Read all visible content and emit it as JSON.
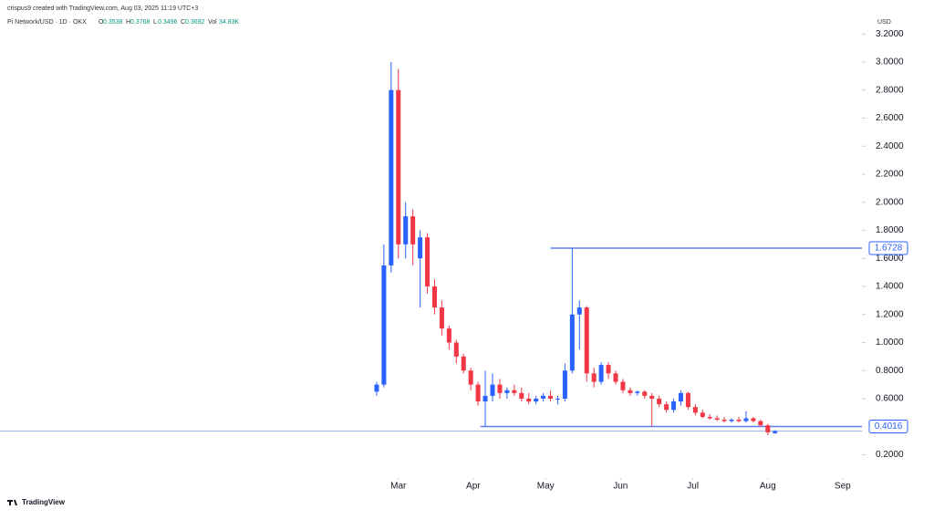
{
  "chart_data": {
    "type": "candlestick",
    "credit": "crispus9 created with TradingView.com, Aug 03, 2025 11:19 UTC+3",
    "title": "Pi Network/USD · 1D · OKX",
    "ohlc_legend": {
      "o": "O",
      "h": "H",
      "l": "L",
      "c": "C",
      "vol": "Vol",
      "vol_value": "34.83K"
    },
    "y_label": "USD",
    "watermark": "TradingView",
    "up_color": "#2962ff",
    "down_color": "#f23645",
    "grid": false,
    "x": [
      19,
      22,
      25,
      28,
      31,
      34,
      37,
      40,
      43,
      46,
      49,
      52,
      55,
      58,
      61,
      64,
      67,
      70,
      73,
      76,
      79,
      82,
      85,
      88,
      91,
      94,
      97,
      100,
      103,
      106,
      109,
      112,
      115,
      118,
      121,
      124,
      127,
      130,
      133,
      136,
      139,
      142,
      145,
      148,
      151,
      154,
      157,
      160,
      163,
      166,
      169,
      172,
      175,
      178,
      181,
      184
    ],
    "open": [
      0.65,
      0.7,
      1.55,
      2.8,
      1.7,
      1.9,
      1.6,
      1.75,
      1.4,
      1.25,
      1.1,
      1.0,
      0.9,
      0.8,
      0.7,
      0.58,
      0.62,
      0.7,
      0.64,
      0.66,
      0.64,
      0.6,
      0.58,
      0.6,
      0.62,
      0.6,
      0.6,
      0.8,
      1.2,
      1.25,
      0.78,
      0.72,
      0.84,
      0.78,
      0.72,
      0.66,
      0.64,
      0.65,
      0.62,
      0.6,
      0.56,
      0.52,
      0.58,
      0.64,
      0.54,
      0.5,
      0.47,
      0.46,
      0.45,
      0.44,
      0.45,
      0.44,
      0.46,
      0.44,
      0.41,
      0.3538
    ],
    "high": [
      0.72,
      1.7,
      3.0,
      2.95,
      2.0,
      1.95,
      1.8,
      1.78,
      1.45,
      1.3,
      1.12,
      1.02,
      0.92,
      0.82,
      0.72,
      0.8,
      0.78,
      0.74,
      0.68,
      0.7,
      0.68,
      0.64,
      0.62,
      0.64,
      0.66,
      0.62,
      0.85,
      1.6728,
      1.3,
      1.26,
      0.82,
      0.86,
      0.86,
      0.8,
      0.74,
      0.68,
      0.66,
      0.66,
      0.64,
      0.62,
      0.58,
      0.6,
      0.66,
      0.65,
      0.56,
      0.52,
      0.49,
      0.48,
      0.47,
      0.46,
      0.47,
      0.51,
      0.47,
      0.45,
      0.42,
      0.3768
    ],
    "low": [
      0.62,
      0.68,
      1.5,
      1.6,
      1.6,
      1.55,
      1.25,
      1.35,
      1.2,
      1.05,
      0.95,
      0.85,
      0.78,
      0.66,
      0.55,
      0.4,
      0.58,
      0.6,
      0.6,
      0.62,
      0.58,
      0.56,
      0.56,
      0.58,
      0.58,
      0.56,
      0.58,
      0.78,
      0.95,
      0.72,
      0.68,
      0.7,
      0.74,
      0.7,
      0.64,
      0.62,
      0.62,
      0.6,
      0.4,
      0.54,
      0.5,
      0.5,
      0.55,
      0.52,
      0.48,
      0.46,
      0.45,
      0.44,
      0.43,
      0.43,
      0.43,
      0.43,
      0.43,
      0.4,
      0.34,
      0.3496
    ],
    "close": [
      0.7,
      1.55,
      2.8,
      1.7,
      1.9,
      1.7,
      1.75,
      1.4,
      1.25,
      1.1,
      1.0,
      0.9,
      0.8,
      0.7,
      0.58,
      0.62,
      0.7,
      0.64,
      0.66,
      0.64,
      0.6,
      0.58,
      0.6,
      0.62,
      0.6,
      0.6,
      0.8,
      1.2,
      1.25,
      0.78,
      0.72,
      0.84,
      0.78,
      0.72,
      0.66,
      0.64,
      0.65,
      0.62,
      0.6,
      0.56,
      0.52,
      0.58,
      0.64,
      0.54,
      0.5,
      0.47,
      0.46,
      0.45,
      0.44,
      0.45,
      0.44,
      0.46,
      0.44,
      0.41,
      0.36,
      0.3692
    ],
    "xlim": [
      -137,
      220
    ],
    "xticks": [
      {
        "value": 28,
        "label": "Mar"
      },
      {
        "value": 59,
        "label": "Apr"
      },
      {
        "value": 89,
        "label": "May"
      },
      {
        "value": 120,
        "label": "Jun"
      },
      {
        "value": 150,
        "label": "Jul"
      },
      {
        "value": 181,
        "label": "Aug"
      },
      {
        "value": 212,
        "label": "Sep"
      }
    ],
    "ylim": [
      -0.07,
      3.26
    ],
    "yticks": [
      {
        "value": 0.2,
        "label": "0.2000"
      },
      {
        "value": 0.6,
        "label": "0.6000"
      },
      {
        "value": 0.8,
        "label": "0.8000"
      },
      {
        "value": 1.0,
        "label": "1.0000"
      },
      {
        "value": 1.2,
        "label": "1.2000"
      },
      {
        "value": 1.4,
        "label": "1.4000"
      },
      {
        "value": 1.6,
        "label": "1.6000"
      },
      {
        "value": 1.8,
        "label": "1.8000"
      },
      {
        "value": 2.0,
        "label": "2.0000"
      },
      {
        "value": 2.2,
        "label": "2.2000"
      },
      {
        "value": 2.4,
        "label": "2.4000"
      },
      {
        "value": 2.6,
        "label": "2.6000"
      },
      {
        "value": 2.8,
        "label": "2.8000"
      },
      {
        "value": 3.0,
        "label": "3.0000"
      },
      {
        "value": 3.2,
        "label": "3.2000"
      }
    ],
    "levels": [
      {
        "value": 1.6728,
        "x_start": 91
      },
      {
        "value": 0.4016,
        "x_start": 62
      }
    ]
  }
}
